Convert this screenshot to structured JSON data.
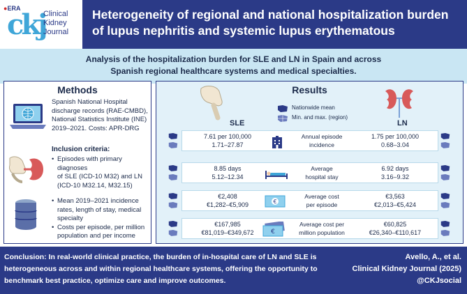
{
  "logo": {
    "era": "ERA",
    "mark": "ckj",
    "journal": [
      "Clinical",
      "Kidney",
      "Journal"
    ]
  },
  "title": "Heterogeneity of regional and national hospitalization burden of lupus nephritis and systemic lupus erythematous",
  "subtitle": [
    "Analysis of the hospitalization burden for SLE and LN in Spain and across",
    "Spanish regional healthcare systems and medical specialties."
  ],
  "methods": {
    "heading": "Methods",
    "data_sources": [
      "Spanish National Hospital",
      "discharge records (RAE-CMBD),",
      "National Statistics Institute (INE)",
      "2019–2021. Costs: APR-DRG"
    ],
    "inclusion_heading": "Inclusion criteria:",
    "inclusion": [
      "Episodes with primary diagnoses",
      "of SLE (ICD-10 M32) and LN",
      "(ICD-10 M32.14, M32.15)"
    ],
    "outcomes": [
      [
        "Mean 2019–2021 incidence",
        "rates, length of stay, medical",
        "specialty"
      ],
      [
        "Costs per episode, per million",
        "population and per income"
      ]
    ]
  },
  "results": {
    "heading": "Results",
    "legend": [
      "Nationwide mean",
      "Min. and max. (region)"
    ],
    "col_sle": "SLE",
    "col_ln": "LN",
    "rows": [
      {
        "label": [
          "Annual episode",
          "incidence"
        ],
        "sle": [
          "7.61 per 100,000",
          "1.71–27.87"
        ],
        "ln": [
          "1.75 per 100,000",
          "0.68–3.04"
        ],
        "icon": "hospital-icon"
      },
      {
        "label": [
          "Average",
          "hospital stay"
        ],
        "sle": [
          "8.85 days",
          "5.12–12.34"
        ],
        "ln": [
          "6.92 days",
          "3.16–9.32"
        ],
        "icon": "hospital-bed-icon"
      },
      {
        "label": [
          "Average cost",
          "per episode"
        ],
        "sle": [
          "€2,408",
          "€1,282–€5,909"
        ],
        "ln": [
          "€3,563",
          "€2,013–€5,424"
        ],
        "icon": "banknote-icon"
      },
      {
        "label": [
          "Average cost per",
          "million population"
        ],
        "sle": [
          "€167,985",
          "€81,019–€349,672"
        ],
        "ln": [
          "€60,825",
          "€26,340–€110,617"
        ],
        "icon": "banknotes-stack-icon"
      }
    ]
  },
  "footer": {
    "conclusion": "Conclusion: In real-world clinical practice, the burden of in-hospital care of LN and SLE is heterogeneous across and within regional healthcare systems, offering the opportunity to benchmark best practice, optimize care and improve outcomes.",
    "citation": [
      "Avello, A., et al.",
      "Clinical Kidney Journal (2025)",
      "@CKJsocial"
    ]
  },
  "colors": {
    "navy": "#2b3a87",
    "light_blue": "#c9e6f3",
    "panel_blue": "#e2f1f9",
    "accent": "#3fa6d8"
  }
}
